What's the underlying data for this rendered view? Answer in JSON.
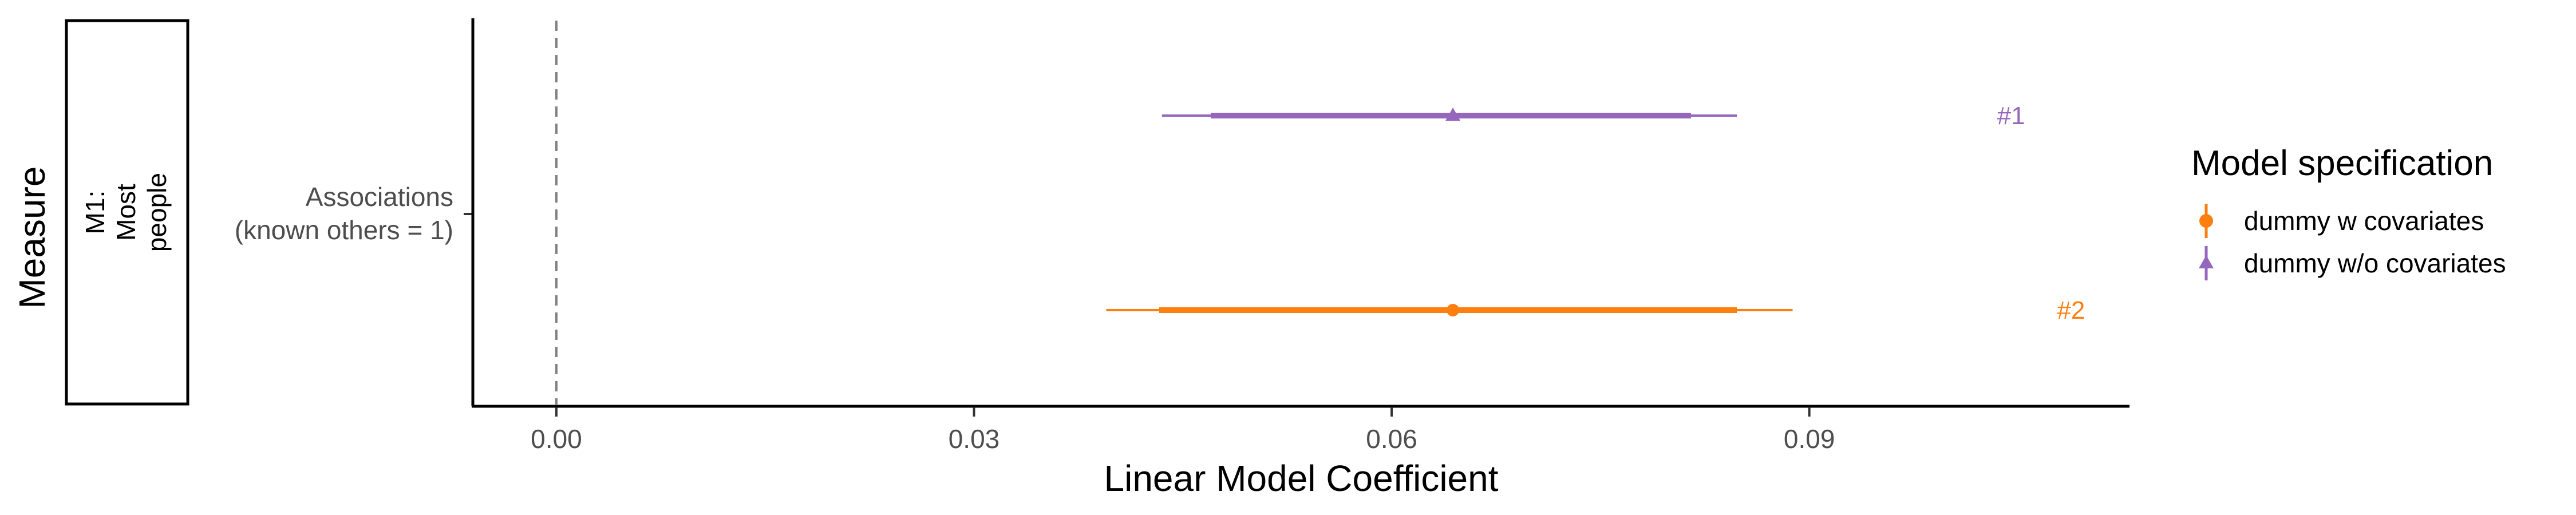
{
  "chart_data": {
    "type": "forest",
    "xlabel": "Linear Model Coefficient",
    "ylabel": "Measure",
    "xlim": [
      -0.006,
      0.113
    ],
    "x_ticks": [
      0.0,
      0.03,
      0.06,
      0.09
    ],
    "x_tick_labels": [
      "0.00",
      "0.03",
      "0.06",
      "0.09"
    ],
    "reference_line": 0,
    "facet_label": [
      "M1:",
      "Most",
      "people"
    ],
    "y_category": {
      "line1": "Associations",
      "line2": "(known others = 1)"
    },
    "series": [
      {
        "name": "dummy w/o covariates",
        "color": "#9467bd",
        "shape": "triangle",
        "estimate": 0.0644,
        "ci_inner": [
          0.047,
          0.0815
        ],
        "ci_outer": [
          0.0435,
          0.0848
        ],
        "rank_label": "#1",
        "rank_label_x": 0.1045
      },
      {
        "name": "dummy w covariates",
        "color": "#ff7f0e",
        "shape": "circle",
        "estimate": 0.0644,
        "ci_inner": [
          0.0433,
          0.0848
        ],
        "ci_outer": [
          0.0395,
          0.0888
        ],
        "rank_label": "#2",
        "rank_label_x": 0.1088
      }
    ],
    "legend": {
      "title": "Model specification",
      "position": "right",
      "items": [
        {
          "label": "dummy w covariates",
          "color": "#ff7f0e",
          "shape": "circle"
        },
        {
          "label": "dummy w/o covariates",
          "color": "#9467bd",
          "shape": "triangle"
        }
      ]
    },
    "grid": false
  }
}
